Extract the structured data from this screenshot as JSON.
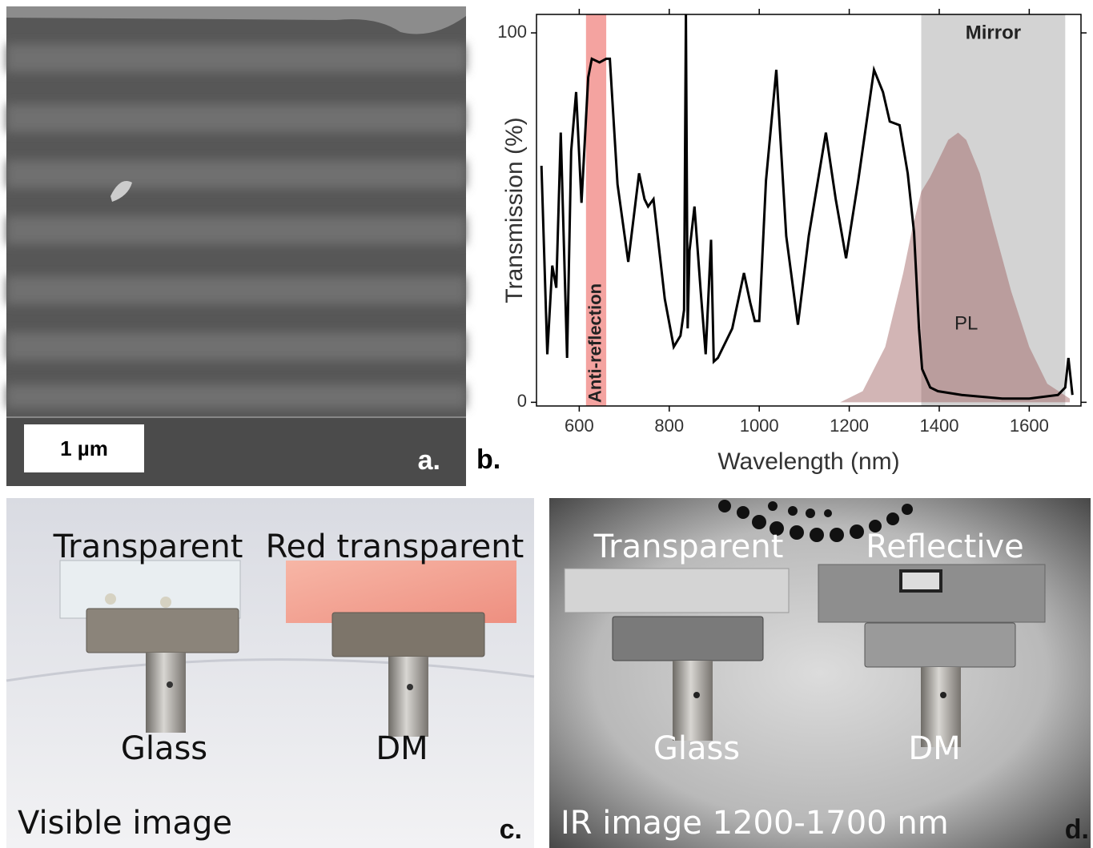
{
  "panels": {
    "a": {
      "scale_bar": "1 µm",
      "label": "a."
    },
    "b": {
      "label": "b."
    },
    "c": {
      "labels": [
        "Transparent",
        "Red transparent",
        "Glass",
        "DM"
      ],
      "caption": "Visible image",
      "label": "c."
    },
    "d": {
      "labels": [
        "Transparent",
        "Reflective",
        "Glass",
        "DM"
      ],
      "caption": "IR image 1200-1700 nm",
      "label": "d."
    }
  },
  "chart_data": {
    "type": "line",
    "x_label": "Wavelength (nm)",
    "y_label": "Transmission (%)",
    "xlim": [
      505,
      1715
    ],
    "ylim": [
      -1,
      105
    ],
    "xticks": [
      600,
      800,
      1000,
      1200,
      1400,
      1600
    ],
    "yticks": [
      0,
      100
    ],
    "bands": [
      {
        "text": "Anti-reflection",
        "x0": 615,
        "x1": 660,
        "color": "#f4a3a0"
      },
      {
        "text": "Mirror",
        "x0": 1360,
        "x1": 1680,
        "color": "#d3d3d3"
      }
    ],
    "series": [
      {
        "color": "#000000",
        "x": [
          516,
          529,
          540,
          549,
          559,
          573,
          582,
          593,
          605,
          620,
          628,
          645,
          660,
          668,
          685,
          709,
          733,
          745,
          753,
          765,
          790,
          810,
          825,
          833,
          837,
          841,
          845,
          856,
          870,
          881,
          893,
          899,
          908,
          940,
          966,
          980,
          990,
          1000,
          1015,
          1038,
          1060,
          1086,
          1110,
          1148,
          1170,
          1193,
          1220,
          1255,
          1275,
          1290,
          1312,
          1330,
          1344,
          1355,
          1362,
          1380,
          1397,
          1450,
          1540,
          1600,
          1664,
          1680,
          1687,
          1696
        ],
        "values": [
          64,
          13,
          37,
          31,
          73,
          12,
          68,
          84,
          54,
          88,
          93,
          92,
          93,
          93,
          59,
          38,
          62,
          55,
          53,
          55,
          28,
          15,
          18,
          25,
          105,
          20,
          41,
          53,
          30,
          13,
          44,
          11,
          12,
          20,
          35,
          27,
          22,
          22,
          60,
          90,
          45,
          21,
          45,
          73,
          55,
          39,
          60,
          90,
          84,
          76,
          75,
          62,
          46,
          20,
          9,
          4,
          3,
          2,
          1,
          1,
          2,
          4,
          12,
          2
        ]
      },
      {
        "name": "PL",
        "type": "area",
        "color": "#9c5c5c",
        "x": [
          1180,
          1230,
          1280,
          1320,
          1340,
          1360,
          1380,
          1400,
          1420,
          1442,
          1460,
          1490,
          1520,
          1560,
          1600,
          1640,
          1690
        ],
        "values": [
          0,
          3,
          15,
          35,
          47,
          57,
          61,
          66,
          71,
          73,
          71,
          62,
          48,
          30,
          15,
          5,
          1
        ]
      }
    ]
  }
}
